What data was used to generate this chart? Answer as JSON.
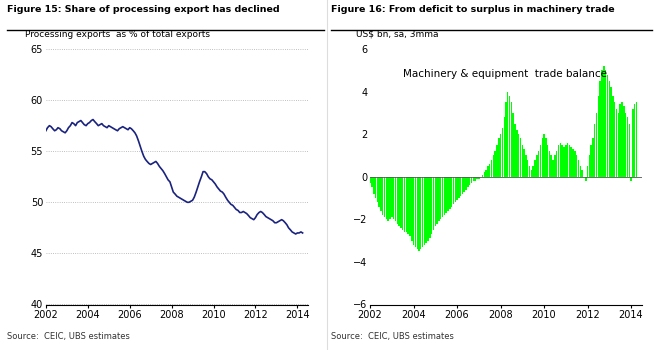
{
  "fig_title_left": "Figure 15: Share of processing export has declined",
  "fig_title_right": "Figure 16: From deficit to surplus in machinery trade",
  "left_ylabel": "Processing exports  as % of total exports",
  "right_ylabel": "US$ bn, sa, 3mma",
  "right_annotation": "Machinery & equipment  trade balance",
  "source_left": "Source:  CEIC, UBS estimates",
  "source_right": "Source:  CEIC, UBS estimates",
  "left_ylim": [
    40,
    65
  ],
  "left_yticks": [
    40,
    45,
    50,
    55,
    60,
    65
  ],
  "right_ylim": [
    -6,
    6
  ],
  "right_yticks": [
    -6,
    -4,
    -2,
    0,
    2,
    4,
    6
  ],
  "left_color": "#1a237e",
  "bar_color": "#00FF00",
  "left_data_x": [
    2002.0,
    2002.08,
    2002.17,
    2002.25,
    2002.33,
    2002.42,
    2002.5,
    2002.58,
    2002.67,
    2002.75,
    2002.83,
    2002.92,
    2003.0,
    2003.08,
    2003.17,
    2003.25,
    2003.33,
    2003.42,
    2003.5,
    2003.58,
    2003.67,
    2003.75,
    2003.83,
    2003.92,
    2004.0,
    2004.08,
    2004.17,
    2004.25,
    2004.33,
    2004.42,
    2004.5,
    2004.58,
    2004.67,
    2004.75,
    2004.83,
    2004.92,
    2005.0,
    2005.08,
    2005.17,
    2005.25,
    2005.33,
    2005.42,
    2005.5,
    2005.58,
    2005.67,
    2005.75,
    2005.83,
    2005.92,
    2006.0,
    2006.08,
    2006.17,
    2006.25,
    2006.33,
    2006.42,
    2006.5,
    2006.58,
    2006.67,
    2006.75,
    2006.83,
    2006.92,
    2007.0,
    2007.08,
    2007.17,
    2007.25,
    2007.33,
    2007.42,
    2007.5,
    2007.58,
    2007.67,
    2007.75,
    2007.83,
    2007.92,
    2008.0,
    2008.08,
    2008.17,
    2008.25,
    2008.33,
    2008.42,
    2008.5,
    2008.58,
    2008.67,
    2008.75,
    2008.83,
    2008.92,
    2009.0,
    2009.08,
    2009.17,
    2009.25,
    2009.33,
    2009.42,
    2009.5,
    2009.58,
    2009.67,
    2009.75,
    2009.83,
    2009.92,
    2010.0,
    2010.08,
    2010.17,
    2010.25,
    2010.33,
    2010.42,
    2010.5,
    2010.58,
    2010.67,
    2010.75,
    2010.83,
    2010.92,
    2011.0,
    2011.08,
    2011.17,
    2011.25,
    2011.33,
    2011.42,
    2011.5,
    2011.58,
    2011.67,
    2011.75,
    2011.83,
    2011.92,
    2012.0,
    2012.08,
    2012.17,
    2012.25,
    2012.33,
    2012.42,
    2012.5,
    2012.58,
    2012.67,
    2012.75,
    2012.83,
    2012.92,
    2013.0,
    2013.08,
    2013.17,
    2013.25,
    2013.33,
    2013.42,
    2013.5,
    2013.58,
    2013.67,
    2013.75,
    2013.83,
    2013.92,
    2014.0,
    2014.08,
    2014.17,
    2014.25
  ],
  "left_data_y": [
    57.0,
    57.3,
    57.5,
    57.4,
    57.2,
    57.0,
    57.1,
    57.3,
    57.2,
    57.0,
    56.9,
    56.8,
    57.0,
    57.3,
    57.5,
    57.8,
    57.7,
    57.5,
    57.8,
    57.9,
    58.0,
    57.8,
    57.6,
    57.5,
    57.7,
    57.8,
    58.0,
    58.1,
    57.9,
    57.7,
    57.5,
    57.6,
    57.7,
    57.5,
    57.4,
    57.3,
    57.5,
    57.4,
    57.3,
    57.2,
    57.1,
    57.0,
    57.2,
    57.3,
    57.4,
    57.3,
    57.2,
    57.1,
    57.3,
    57.2,
    57.0,
    56.8,
    56.5,
    56.0,
    55.5,
    55.0,
    54.5,
    54.2,
    54.0,
    53.8,
    53.7,
    53.8,
    53.9,
    54.0,
    53.8,
    53.5,
    53.3,
    53.1,
    52.8,
    52.5,
    52.2,
    52.0,
    51.5,
    51.0,
    50.8,
    50.6,
    50.5,
    50.4,
    50.3,
    50.2,
    50.1,
    50.0,
    50.0,
    50.1,
    50.2,
    50.5,
    51.0,
    51.5,
    52.0,
    52.5,
    53.0,
    53.0,
    52.8,
    52.5,
    52.3,
    52.2,
    52.0,
    51.8,
    51.5,
    51.3,
    51.1,
    51.0,
    50.8,
    50.5,
    50.2,
    50.0,
    49.8,
    49.7,
    49.5,
    49.3,
    49.2,
    49.0,
    49.0,
    49.1,
    49.0,
    48.9,
    48.7,
    48.5,
    48.4,
    48.3,
    48.5,
    48.8,
    49.0,
    49.1,
    49.0,
    48.8,
    48.6,
    48.5,
    48.4,
    48.3,
    48.2,
    48.0,
    48.0,
    48.1,
    48.2,
    48.3,
    48.2,
    48.0,
    47.8,
    47.5,
    47.3,
    47.1,
    47.0,
    46.9,
    47.0,
    47.0,
    47.1,
    47.0
  ],
  "right_data_x": [
    2002.0,
    2002.08,
    2002.17,
    2002.25,
    2002.33,
    2002.42,
    2002.5,
    2002.58,
    2002.67,
    2002.75,
    2002.83,
    2002.92,
    2003.0,
    2003.08,
    2003.17,
    2003.25,
    2003.33,
    2003.42,
    2003.5,
    2003.58,
    2003.67,
    2003.75,
    2003.83,
    2003.92,
    2004.0,
    2004.08,
    2004.17,
    2004.25,
    2004.33,
    2004.42,
    2004.5,
    2004.58,
    2004.67,
    2004.75,
    2004.83,
    2004.92,
    2005.0,
    2005.08,
    2005.17,
    2005.25,
    2005.33,
    2005.42,
    2005.5,
    2005.58,
    2005.67,
    2005.75,
    2005.83,
    2005.92,
    2006.0,
    2006.08,
    2006.17,
    2006.25,
    2006.33,
    2006.42,
    2006.5,
    2006.58,
    2006.67,
    2006.75,
    2006.83,
    2006.92,
    2007.0,
    2007.08,
    2007.17,
    2007.25,
    2007.33,
    2007.42,
    2007.5,
    2007.58,
    2007.67,
    2007.75,
    2007.83,
    2007.92,
    2008.0,
    2008.08,
    2008.17,
    2008.25,
    2008.33,
    2008.42,
    2008.5,
    2008.58,
    2008.67,
    2008.75,
    2008.83,
    2008.92,
    2009.0,
    2009.08,
    2009.17,
    2009.25,
    2009.33,
    2009.42,
    2009.5,
    2009.58,
    2009.67,
    2009.75,
    2009.83,
    2009.92,
    2010.0,
    2010.08,
    2010.17,
    2010.25,
    2010.33,
    2010.42,
    2010.5,
    2010.58,
    2010.67,
    2010.75,
    2010.83,
    2010.92,
    2011.0,
    2011.08,
    2011.17,
    2011.25,
    2011.33,
    2011.42,
    2011.5,
    2011.58,
    2011.67,
    2011.75,
    2011.83,
    2011.92,
    2012.0,
    2012.08,
    2012.17,
    2012.25,
    2012.33,
    2012.42,
    2012.5,
    2012.58,
    2012.67,
    2012.75,
    2012.83,
    2012.92,
    2013.0,
    2013.08,
    2013.17,
    2013.25,
    2013.33,
    2013.42,
    2013.5,
    2013.58,
    2013.67,
    2013.75,
    2013.83,
    2013.92,
    2014.0,
    2014.08,
    2014.17,
    2014.25
  ],
  "right_data_y": [
    -0.3,
    -0.5,
    -0.8,
    -1.0,
    -1.2,
    -1.4,
    -1.6,
    -1.8,
    -1.9,
    -2.0,
    -2.1,
    -2.0,
    -1.9,
    -2.0,
    -2.1,
    -2.2,
    -2.3,
    -2.4,
    -2.5,
    -2.6,
    -2.6,
    -2.7,
    -2.8,
    -3.0,
    -3.2,
    -3.3,
    -3.4,
    -3.5,
    -3.4,
    -3.3,
    -3.2,
    -3.1,
    -3.0,
    -2.9,
    -2.7,
    -2.5,
    -2.3,
    -2.2,
    -2.1,
    -2.0,
    -1.9,
    -1.8,
    -1.7,
    -1.6,
    -1.5,
    -1.4,
    -1.3,
    -1.2,
    -1.1,
    -1.0,
    -0.9,
    -0.8,
    -0.7,
    -0.6,
    -0.5,
    -0.4,
    -0.3,
    -0.2,
    -0.2,
    -0.1,
    -0.1,
    0.0,
    0.1,
    0.2,
    0.3,
    0.5,
    0.6,
    0.8,
    1.0,
    1.2,
    1.5,
    1.8,
    2.0,
    2.3,
    2.8,
    3.5,
    4.0,
    3.8,
    3.5,
    3.0,
    2.5,
    2.2,
    2.0,
    1.8,
    1.5,
    1.3,
    1.0,
    0.8,
    0.5,
    0.3,
    0.5,
    0.8,
    1.0,
    1.2,
    1.5,
    1.8,
    2.0,
    1.8,
    1.5,
    1.2,
    1.0,
    0.8,
    1.0,
    1.2,
    1.5,
    1.6,
    1.5,
    1.4,
    1.5,
    1.6,
    1.5,
    1.4,
    1.3,
    1.2,
    1.0,
    0.8,
    0.5,
    0.3,
    0.0,
    -0.2,
    0.5,
    1.0,
    1.5,
    1.8,
    2.5,
    3.0,
    3.8,
    4.5,
    5.0,
    5.2,
    5.0,
    4.8,
    4.5,
    4.2,
    3.8,
    3.5,
    3.2,
    3.0,
    3.4,
    3.5,
    3.3,
    3.0,
    2.8,
    2.5,
    -0.2,
    3.2,
    3.4,
    3.5
  ]
}
